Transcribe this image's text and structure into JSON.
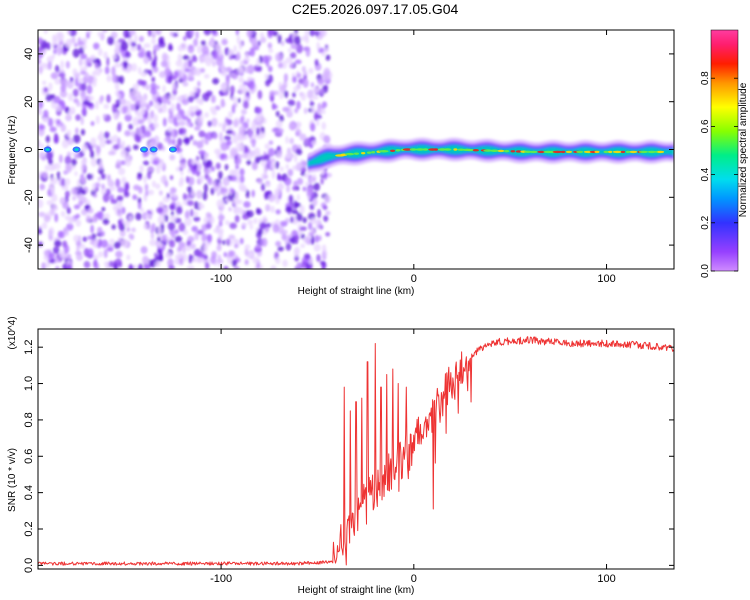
{
  "title": "C2E5.2026.097.17.05.G04",
  "colors": {
    "snr_line": "#ee3333",
    "spec_scatter": "#8a3ff0",
    "spec_core": "#00c8c0",
    "spec_peak": "#e82020"
  },
  "chart_data": [
    {
      "type": "heatmap",
      "title": "C2E5.2026.097.17.05.G04",
      "xlabel": "Height of straight line (km)",
      "ylabel": "Frequency (Hz)",
      "xlim": [
        -195,
        135
      ],
      "ylim": [
        -50,
        50
      ],
      "xticks": [
        -100,
        0,
        100
      ],
      "xtick_labels": [
        "-100",
        "0",
        "100"
      ],
      "yticks": [
        -40,
        -20,
        0,
        20,
        40
      ],
      "ytick_labels": [
        "-40",
        "-20",
        "0",
        "20",
        "40"
      ],
      "grid": false,
      "colorbar": {
        "label": "Normalized spectral amplitude",
        "range": [
          0,
          1
        ],
        "ticks": [
          0.0,
          0.2,
          0.4,
          0.6,
          0.8
        ],
        "tick_labels": [
          "0.0",
          "0.2",
          "0.4",
          "0.6",
          "0.8"
        ],
        "colormap": "rainbow (magenta-blue-cyan-green-yellow-red)"
      },
      "features": {
        "noise_region_x": [
          -195,
          -50
        ],
        "noise_amplitude": 0.12,
        "signal_band_x": [
          -55,
          135
        ],
        "signal_band_center": [
          {
            "x": -55,
            "y": -6
          },
          {
            "x": -45,
            "y": -3
          },
          {
            "x": -35,
            "y": -2
          },
          {
            "x": -20,
            "y": -1
          },
          {
            "x": -5,
            "y": 0
          },
          {
            "x": 20,
            "y": 0
          },
          {
            "x": 60,
            "y": -1
          },
          {
            "x": 90,
            "y": -1
          },
          {
            "x": 135,
            "y": -1
          }
        ],
        "signal_peak_amplitude": 0.95
      }
    },
    {
      "type": "line",
      "xlabel": "Height of straight line (km)",
      "ylabel": "SNR (10 * v/v)",
      "y_multiplier": "(x10^4)",
      "xlim": [
        -195,
        135
      ],
      "ylim": [
        -0.02,
        1.3
      ],
      "xticks": [
        -100,
        0,
        100
      ],
      "xtick_labels": [
        "-100",
        "0",
        "100"
      ],
      "yticks": [
        0.0,
        0.2,
        0.4,
        0.6,
        0.8,
        1.0,
        1.2
      ],
      "ytick_labels": [
        "0.0",
        "0.2",
        "0.4",
        "0.6",
        "0.8",
        "1.0",
        "1.2"
      ],
      "grid": false,
      "series": [
        {
          "envelope": [
            {
              "x": -195,
              "y": 0.01
            },
            {
              "x": -60,
              "y": 0.01
            },
            {
              "x": -42,
              "y": 0.02
            },
            {
              "x": -35,
              "y": 0.18
            },
            {
              "x": -28,
              "y": 0.32
            },
            {
              "x": -20,
              "y": 0.42
            },
            {
              "x": -12,
              "y": 0.52
            },
            {
              "x": -5,
              "y": 0.6
            },
            {
              "x": 0,
              "y": 0.68
            },
            {
              "x": 5,
              "y": 0.75
            },
            {
              "x": 10,
              "y": 0.82
            },
            {
              "x": 15,
              "y": 0.92
            },
            {
              "x": 20,
              "y": 1.02
            },
            {
              "x": 25,
              "y": 1.1
            },
            {
              "x": 30,
              "y": 1.16
            },
            {
              "x": 38,
              "y": 1.21
            },
            {
              "x": 45,
              "y": 1.23
            },
            {
              "x": 60,
              "y": 1.24
            },
            {
              "x": 80,
              "y": 1.22
            },
            {
              "x": 100,
              "y": 1.22
            },
            {
              "x": 120,
              "y": 1.21
            },
            {
              "x": 135,
              "y": 1.19
            }
          ],
          "spikes": [
            {
              "x": -36,
              "y": 0.98
            },
            {
              "x": -33,
              "y": 0.85
            },
            {
              "x": -30,
              "y": 0.9
            },
            {
              "x": -27,
              "y": 0.92
            },
            {
              "x": -24,
              "y": 1.12
            },
            {
              "x": -20,
              "y": 1.22
            },
            {
              "x": -17,
              "y": 0.98
            },
            {
              "x": -14,
              "y": 1.05
            },
            {
              "x": -11,
              "y": 1.08
            },
            {
              "x": -8,
              "y": 1.0
            },
            {
              "x": -4,
              "y": 0.98
            },
            {
              "x": 10,
              "y": 0.31
            }
          ]
        }
      ]
    }
  ]
}
